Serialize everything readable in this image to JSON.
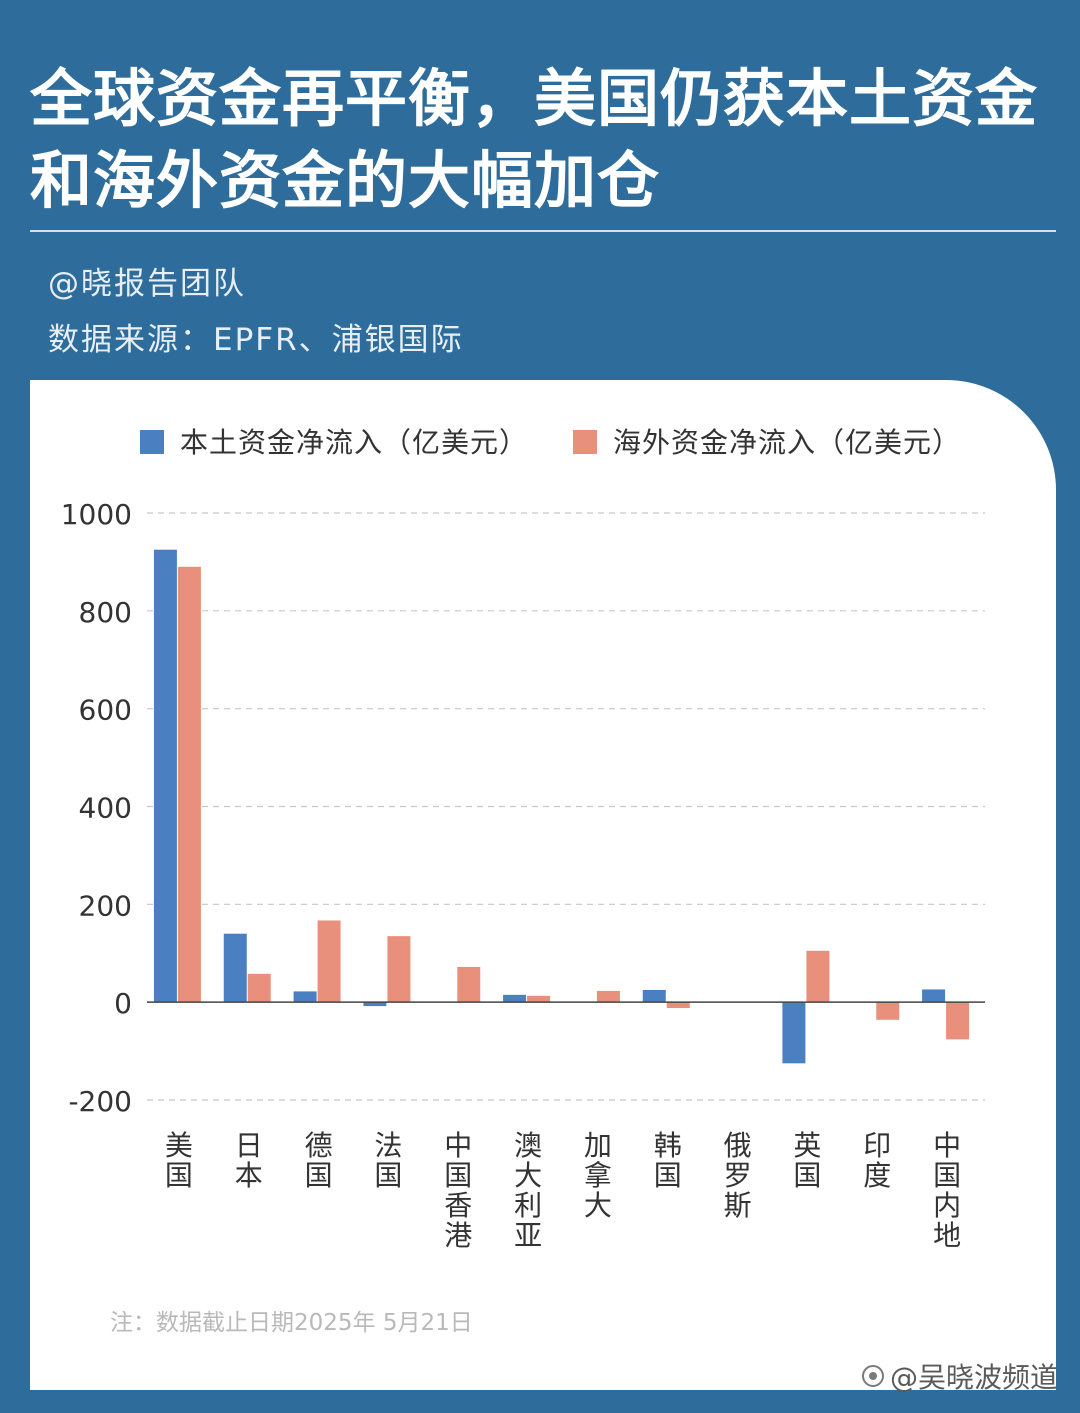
{
  "header": {
    "title_line1": "全球资金再平衡，美国仍获本土资金",
    "title_line2": "和海外资金的大幅加仓",
    "author": "@晓报告团队",
    "source": "数据来源：EPFR、浦银国际"
  },
  "footer": {
    "note": "注：数据截止日期2025年 5月21日",
    "watermark": "@吴晓波频道"
  },
  "colors": {
    "background": "#2e6d9b",
    "domestic": "#4a7fc1",
    "overseas": "#e8907c"
  },
  "chart_data": {
    "type": "bar",
    "title": "",
    "xlabel": "",
    "ylabel": "",
    "ylim": [
      -200,
      1000
    ],
    "yticks": [
      1000,
      800,
      600,
      400,
      200,
      0,
      -200
    ],
    "grid": true,
    "legend_position": "top",
    "categories": [
      "美国",
      "日本",
      "德国",
      "法国",
      "中国香港",
      "澳大利亚",
      "加拿大",
      "韩国",
      "俄罗斯",
      "英国",
      "印度",
      "中国内地"
    ],
    "series": [
      {
        "name": "本土资金净流入（亿美元）",
        "color": "#4a7fc1",
        "values": [
          925,
          140,
          22,
          -8,
          0,
          15,
          0,
          25,
          0,
          -125,
          0,
          26
        ]
      },
      {
        "name": "海外资金净流入（亿美元）",
        "color": "#e8907c",
        "values": [
          890,
          58,
          167,
          135,
          72,
          13,
          23,
          -12,
          0,
          105,
          -36,
          -76
        ]
      }
    ]
  }
}
